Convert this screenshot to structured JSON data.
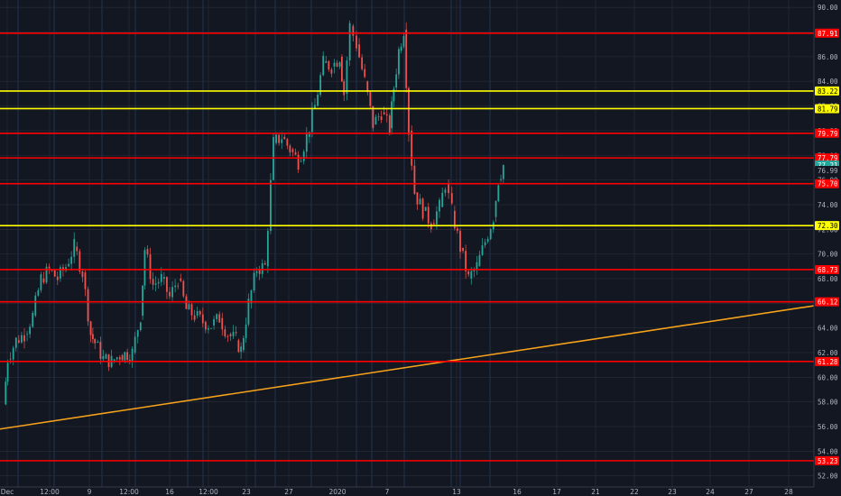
{
  "chart_data": {
    "type": "candlestick",
    "title": "",
    "theme": {
      "background": "#131722",
      "grid": "#2a2e39",
      "up": "#26a69a",
      "down": "#ef5350",
      "axis_text": "#b2b5be"
    },
    "y_ticks": [
      "52.00",
      "54.00",
      "56.00",
      "58.00",
      "60.00",
      "62.00",
      "64.00",
      "66.00",
      "68.00",
      "70.00",
      "72.00",
      "74.00",
      "76.00",
      "78.00",
      "80.00",
      "82.00",
      "84.00",
      "86.00",
      "88.00",
      "90.00"
    ],
    "ylim": [
      51.1,
      90.6
    ],
    "x_ticks": [
      "Dec",
      "12:00",
      "9",
      "12:00",
      "16",
      "12:00",
      "23",
      "27",
      "2020",
      "7",
      "13",
      "16",
      "17",
      "21",
      "22",
      "23",
      "24",
      "27",
      "28"
    ],
    "horizontal_levels": [
      {
        "value": 87.91,
        "label": "87.91",
        "color": "#ff0000"
      },
      {
        "value": 83.22,
        "label": "83.22",
        "color": "#ffff00"
      },
      {
        "value": 81.79,
        "label": "81.79",
        "color": "#ffff00"
      },
      {
        "value": 79.79,
        "label": "79.79",
        "color": "#ff0000"
      },
      {
        "value": 77.79,
        "label": "77.79",
        "color": "#ff0000"
      },
      {
        "value": 75.7,
        "label": "75.70",
        "color": "#ff0000"
      },
      {
        "value": 72.3,
        "label": "72.30",
        "color": "#ffff00"
      },
      {
        "value": 68.73,
        "label": "68.73",
        "color": "#ff0000"
      },
      {
        "value": 66.12,
        "label": "66.12",
        "color": "#ff0000"
      },
      {
        "value": 61.28,
        "label": "61.28",
        "color": "#ff0000"
      },
      {
        "value": 53.23,
        "label": "53.23",
        "color": "#ff0000"
      }
    ],
    "current_price_tags": [
      {
        "value": 77.21,
        "label": "77.21",
        "color": "#26a69a"
      },
      {
        "value": 76.99,
        "label": "76.99",
        "color": "#26a69a"
      }
    ],
    "trendline": {
      "color": "#f7a21b",
      "start_value": 55.8,
      "end_value": 65.8
    },
    "price_path": [
      [
        0.0,
        57.8
      ],
      [
        0.5,
        61.5
      ],
      [
        1.5,
        63.0
      ],
      [
        2.5,
        63.5
      ],
      [
        3.5,
        65.0
      ],
      [
        4.5,
        68.0
      ],
      [
        5.5,
        68.7
      ],
      [
        6.5,
        68.0
      ],
      [
        7.5,
        69.0
      ],
      [
        8.5,
        70.6
      ],
      [
        9.5,
        68.5
      ],
      [
        10.5,
        63.5
      ],
      [
        11.0,
        62.8
      ],
      [
        12.0,
        61.5
      ],
      [
        13.0,
        61.3
      ],
      [
        14.0,
        61.8
      ],
      [
        15.5,
        62.0
      ],
      [
        16.5,
        65.0
      ],
      [
        17.0,
        70.4
      ],
      [
        18.0,
        67.5
      ],
      [
        19.0,
        68.0
      ],
      [
        20.0,
        66.5
      ],
      [
        21.0,
        68.0
      ],
      [
        22.0,
        65.5
      ],
      [
        23.0,
        65.0
      ],
      [
        24.0,
        64.5
      ],
      [
        25.0,
        64.2
      ],
      [
        26.0,
        64.8
      ],
      [
        27.0,
        63.5
      ],
      [
        28.0,
        63.0
      ],
      [
        28.6,
        62.2
      ],
      [
        29.5,
        66.0
      ],
      [
        30.5,
        68.8
      ],
      [
        31.5,
        69.0
      ],
      [
        32.5,
        79.0
      ],
      [
        33.5,
        79.5
      ],
      [
        34.5,
        78.5
      ],
      [
        35.5,
        77.5
      ],
      [
        36.5,
        79.5
      ],
      [
        37.5,
        82.0
      ],
      [
        38.5,
        85.5
      ],
      [
        39.5,
        85.2
      ],
      [
        40.5,
        86.0
      ],
      [
        41.0,
        83.0
      ],
      [
        41.7,
        88.5
      ],
      [
        42.5,
        87.0
      ],
      [
        43.5,
        84.0
      ],
      [
        44.5,
        80.5
      ],
      [
        45.5,
        81.5
      ],
      [
        46.5,
        80.2
      ],
      [
        47.0,
        83.5
      ],
      [
        47.6,
        86.5
      ],
      [
        48.2,
        88.2
      ],
      [
        48.8,
        80.0
      ],
      [
        49.5,
        75.0
      ],
      [
        50.5,
        73.5
      ],
      [
        51.5,
        72.5
      ],
      [
        52.5,
        73.8
      ],
      [
        53.2,
        75.7
      ],
      [
        54.0,
        73.5
      ],
      [
        55.0,
        70.5
      ],
      [
        56.0,
        68.0
      ],
      [
        57.0,
        69.0
      ],
      [
        58.0,
        71.0
      ],
      [
        59.0,
        73.0
      ],
      [
        59.6,
        76.0
      ],
      [
        60.2,
        77.2
      ]
    ],
    "xlabel": "",
    "ylabel": ""
  }
}
